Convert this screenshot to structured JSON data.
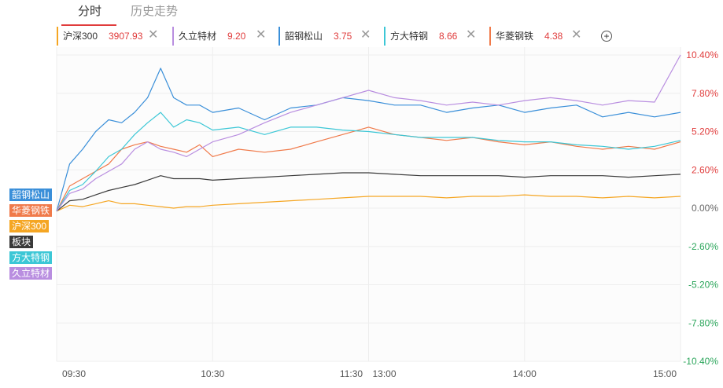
{
  "tabs": [
    {
      "label": "分时",
      "active": true
    },
    {
      "label": "历史走势",
      "active": false
    }
  ],
  "chips": [
    {
      "name": "沪深300",
      "price": "3907.93",
      "color": "#f5a623"
    },
    {
      "name": "久立特材",
      "price": "9.20",
      "color": "#b98ee0"
    },
    {
      "name": "韶钢松山",
      "price": "3.75",
      "color": "#3a8fd9"
    },
    {
      "name": "方大特钢",
      "price": "8.66",
      "color": "#3cc7d6"
    },
    {
      "name": "华菱钢铁",
      "price": "4.38",
      "color": "#f07a4a"
    }
  ],
  "add_label": "+",
  "close_glyph": "✕",
  "legend": [
    {
      "name": "韶钢松山",
      "color": "#3a8fd9"
    },
    {
      "name": "华菱钢铁",
      "color": "#f07a4a"
    },
    {
      "name": "沪深300",
      "color": "#f5a623"
    },
    {
      "name": "板块",
      "color": "#3a3a3a"
    },
    {
      "name": "方大特钢",
      "color": "#3cc7d6"
    },
    {
      "name": "久立特材",
      "color": "#b98ee0"
    }
  ],
  "colors": {
    "up": "#e03c3c",
    "down": "#2aa55a",
    "flat": "#666666",
    "grid": "#eeeeee"
  },
  "chart_data": {
    "type": "line",
    "y_ticks": [
      "10.40%",
      "7.80%",
      "5.20%",
      "2.60%",
      "0.00%",
      "-2.60%",
      "-5.20%",
      "-7.80%",
      "-10.40%"
    ],
    "ylim": [
      -10.4,
      10.4
    ],
    "x_ticks": [
      "09:30",
      "10:30",
      "11:30",
      "13:00",
      "14:00",
      "15:00"
    ],
    "x": [
      "09:30",
      "09:35",
      "09:40",
      "09:45",
      "09:50",
      "09:55",
      "10:00",
      "10:05",
      "10:10",
      "10:15",
      "10:20",
      "10:25",
      "10:30",
      "10:40",
      "10:50",
      "11:00",
      "11:10",
      "11:20",
      "11:30",
      "13:10",
      "13:20",
      "13:30",
      "13:40",
      "13:50",
      "14:00",
      "14:10",
      "14:20",
      "14:30",
      "14:40",
      "14:50",
      "15:00"
    ],
    "series": [
      {
        "name": "韶钢松山",
        "color": "#3a8fd9",
        "values": [
          -0.2,
          3.0,
          4.0,
          5.2,
          6.0,
          5.8,
          6.5,
          7.5,
          9.5,
          7.5,
          7.0,
          7.0,
          6.5,
          6.8,
          6.0,
          6.8,
          7.0,
          7.5,
          7.3,
          7.0,
          7.0,
          6.5,
          6.8,
          7.0,
          6.5,
          6.8,
          7.0,
          6.2,
          6.5,
          6.2,
          6.5
        ]
      },
      {
        "name": "华菱钢铁",
        "color": "#f07a4a",
        "values": [
          -0.2,
          1.5,
          2.0,
          2.5,
          3.0,
          4.0,
          4.3,
          4.5,
          4.2,
          4.0,
          3.8,
          4.3,
          3.5,
          4.0,
          3.8,
          4.0,
          4.5,
          5.0,
          5.5,
          5.0,
          4.8,
          4.6,
          4.8,
          4.5,
          4.3,
          4.5,
          4.2,
          4.0,
          4.2,
          4.0,
          4.5
        ]
      },
      {
        "name": "沪深300",
        "color": "#f5a623",
        "values": [
          -0.2,
          0.2,
          0.1,
          0.3,
          0.5,
          0.3,
          0.3,
          0.2,
          0.1,
          0.0,
          0.1,
          0.1,
          0.2,
          0.3,
          0.4,
          0.5,
          0.6,
          0.7,
          0.8,
          0.8,
          0.8,
          0.7,
          0.8,
          0.8,
          0.9,
          0.8,
          0.8,
          0.7,
          0.8,
          0.7,
          0.8
        ]
      },
      {
        "name": "板块",
        "color": "#3a3a3a",
        "values": [
          -0.2,
          0.5,
          0.6,
          0.9,
          1.2,
          1.4,
          1.6,
          1.9,
          2.2,
          2.0,
          2.0,
          2.0,
          1.9,
          2.0,
          2.1,
          2.2,
          2.3,
          2.4,
          2.4,
          2.3,
          2.2,
          2.2,
          2.2,
          2.2,
          2.1,
          2.2,
          2.2,
          2.2,
          2.1,
          2.2,
          2.3
        ]
      },
      {
        "name": "方大特钢",
        "color": "#3cc7d6",
        "values": [
          -0.2,
          1.2,
          1.6,
          2.5,
          3.5,
          4.0,
          5.0,
          5.8,
          6.5,
          5.5,
          6.0,
          5.8,
          5.3,
          5.5,
          5.0,
          5.5,
          5.5,
          5.3,
          5.2,
          5.0,
          4.8,
          4.8,
          4.8,
          4.6,
          4.5,
          4.5,
          4.3,
          4.2,
          4.0,
          4.2,
          4.6
        ]
      },
      {
        "name": "久立特材",
        "color": "#b98ee0",
        "values": [
          -0.2,
          1.0,
          1.3,
          2.0,
          2.5,
          3.0,
          4.0,
          4.5,
          4.0,
          3.8,
          3.5,
          4.0,
          4.5,
          5.0,
          5.8,
          6.5,
          7.0,
          7.5,
          8.0,
          7.5,
          7.3,
          7.0,
          7.2,
          7.0,
          7.3,
          7.5,
          7.3,
          7.0,
          7.3,
          7.2,
          10.4
        ]
      }
    ]
  }
}
